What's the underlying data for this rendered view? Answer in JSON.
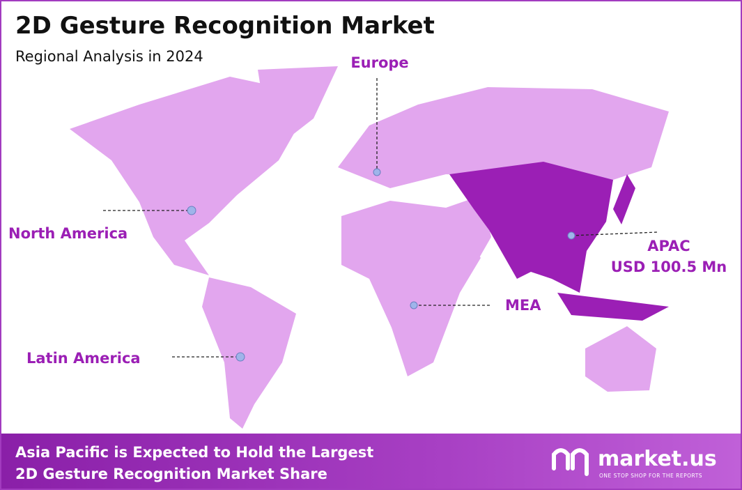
{
  "header": {
    "title": "2D Gesture Recognition Market",
    "subtitle": "Regional Analysis in 2024"
  },
  "regions": [
    {
      "label": "North America"
    },
    {
      "label": "Europe"
    },
    {
      "label": "APAC",
      "value": "USD 100.5 Mn"
    },
    {
      "label": "MEA"
    },
    {
      "label": "Latin America"
    }
  ],
  "footer": {
    "lines": [
      "Asia Pacific is Expected to Hold the Largest",
      "2D Gesture Recognition Market Share"
    ]
  },
  "logo": {
    "name": "market.us",
    "tagline": "ONE STOP SHOP FOR THE REPORTS"
  }
}
